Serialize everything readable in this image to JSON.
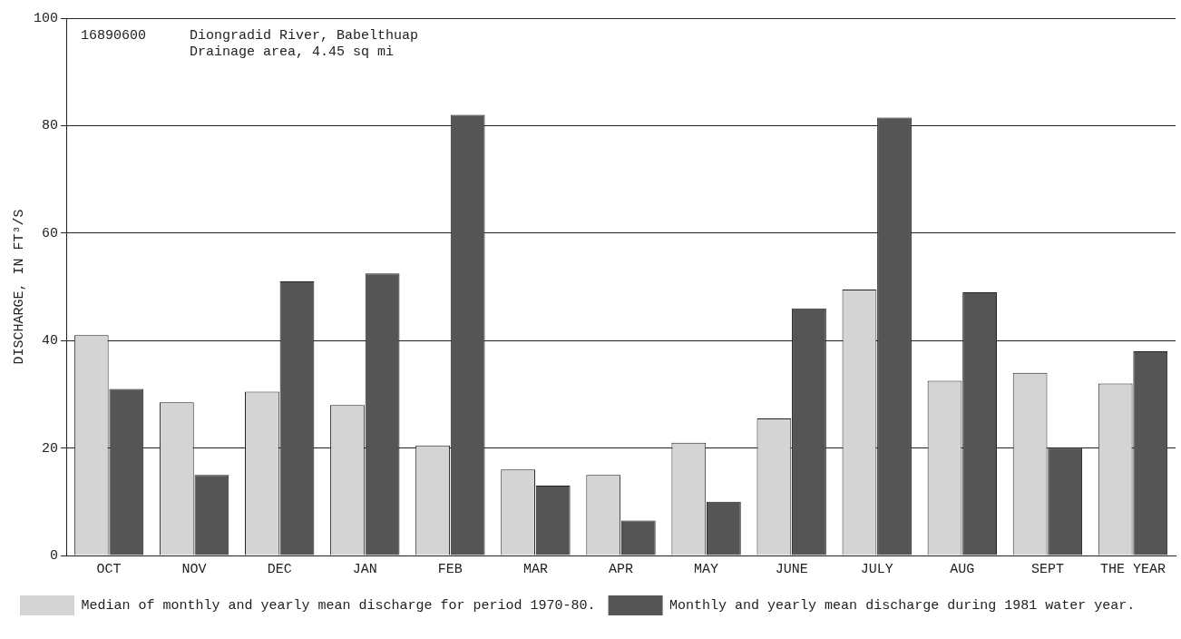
{
  "chart_data": {
    "type": "bar",
    "ylabel": "DISCHARGE, IN FT³/S",
    "categories": [
      "OCT",
      "NOV",
      "DEC",
      "JAN",
      "FEB",
      "MAR",
      "APR",
      "MAY",
      "JUNE",
      "JULY",
      "AUG",
      "SEPT",
      "THE YEAR"
    ],
    "series": [
      {
        "name": "Median of monthly and yearly mean discharge for period 1970-80.",
        "color": "#d4d4d4",
        "values": [
          41,
          28.5,
          30.5,
          28,
          20.5,
          16,
          15,
          21,
          25.5,
          49.5,
          32.5,
          34,
          32
        ]
      },
      {
        "name": "Monthly and yearly mean discharge during 1981 water year.",
        "color": "#555555",
        "values": [
          31,
          15,
          51,
          52.5,
          82,
          13,
          6.5,
          10,
          46,
          81.5,
          49,
          20,
          38
        ]
      }
    ],
    "ylim": [
      0,
      100
    ],
    "yticks": [
      0,
      20,
      40,
      60,
      80,
      100
    ],
    "grid": "y",
    "legend": "bottom",
    "annotations": [
      "16890600",
      "Diongradid River, Babelthuap",
      "Drainage area, 4.45 sq mi"
    ]
  }
}
